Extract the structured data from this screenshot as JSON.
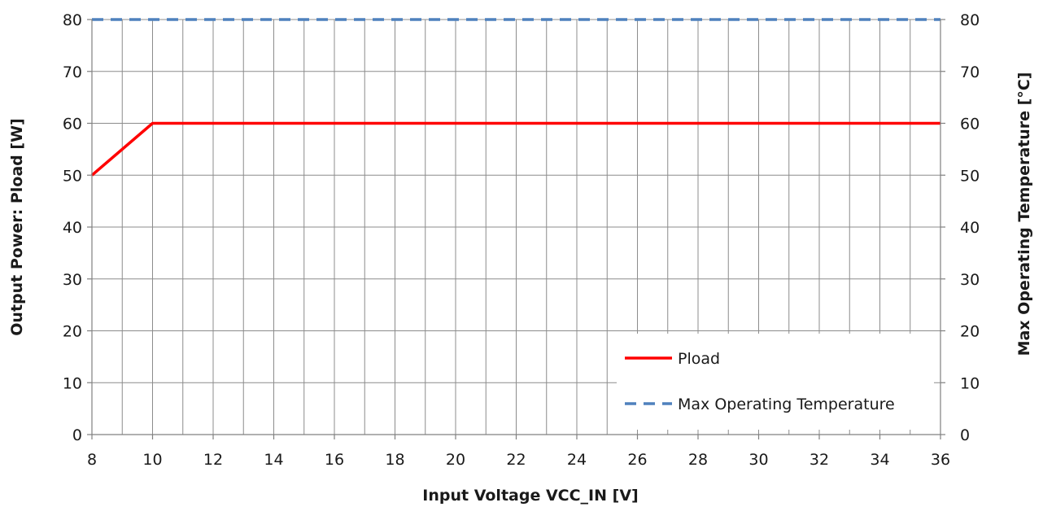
{
  "chart_data": {
    "type": "line",
    "xlabel": "Input Voltage  VCC_IN [V]",
    "ylabel": "Output Power: Pload [W]",
    "y2label": "Max Operating Temperature [°C]",
    "xlim": [
      8,
      36
    ],
    "ylim": [
      0,
      80
    ],
    "y2lim": [
      0,
      80
    ],
    "x_ticks": [
      8,
      10,
      12,
      14,
      16,
      18,
      20,
      22,
      24,
      26,
      28,
      30,
      32,
      34,
      36
    ],
    "y_ticks": [
      0,
      10,
      20,
      30,
      40,
      50,
      60,
      70,
      80
    ],
    "y2_ticks": [
      0,
      10,
      20,
      30,
      40,
      50,
      60,
      70,
      80
    ],
    "x_minor_step": 1,
    "grid": true,
    "legend_position": "bottom-right",
    "series": [
      {
        "name": "Pload",
        "axis": "left",
        "color": "#ff0000",
        "style": "solid",
        "x": [
          8,
          10,
          36
        ],
        "y": [
          50,
          60,
          60
        ]
      },
      {
        "name": "Max Operating Temperature",
        "axis": "right",
        "color": "#4f81bd",
        "style": "dashed",
        "x": [
          8,
          36
        ],
        "y": [
          80,
          80
        ]
      }
    ]
  }
}
